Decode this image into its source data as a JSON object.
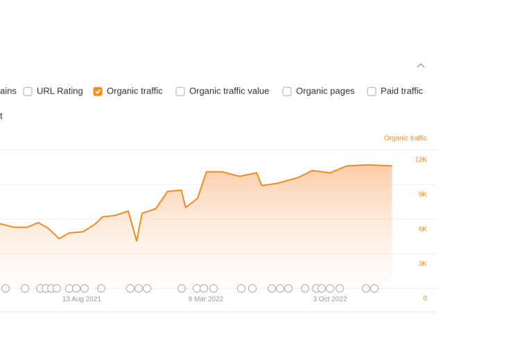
{
  "controls": {
    "metrics": [
      {
        "label": "ains",
        "checked": false
      },
      {
        "label": "URL Rating",
        "checked": false
      },
      {
        "label": "Organic traffic",
        "checked": true
      },
      {
        "label": "Organic traffic value",
        "checked": false
      },
      {
        "label": "Organic pages",
        "checked": false
      },
      {
        "label": "Paid traffic",
        "checked": false
      }
    ],
    "section_label": "t"
  },
  "chart_data": {
    "type": "line",
    "y_label": "Organic traffic",
    "color": "#f58a1f",
    "grid": true,
    "x": [
      "2021-03-29",
      "2021-04-21",
      "2021-05-14",
      "2021-06-01",
      "2021-06-18",
      "2021-07-06",
      "2021-07-23",
      "2021-08-15",
      "2021-09-05",
      "2021-09-17",
      "2021-10-07",
      "2021-10-30",
      "2021-11-13",
      "2021-11-22",
      "2021-12-15",
      "2022-01-04",
      "2022-01-27",
      "2022-02-03",
      "2022-02-23",
      "2022-03-10",
      "2022-04-05",
      "2022-05-04",
      "2022-06-02",
      "2022-06-11",
      "2022-07-07",
      "2022-08-11",
      "2022-09-03",
      "2022-10-03",
      "2022-10-31",
      "2022-12-05",
      "2023-01-15"
    ],
    "series": [
      {
        "name": "Organic traffic",
        "color": "#f58a1f",
        "values": [
          5600,
          5300,
          5300,
          5700,
          5200,
          4300,
          4800,
          4900,
          5600,
          6200,
          6300,
          6700,
          4100,
          6500,
          6900,
          8400,
          8500,
          7000,
          7800,
          10100,
          10100,
          9700,
          10000,
          8900,
          9100,
          9600,
          10200,
          10000,
          10600,
          10700,
          10600
        ]
      }
    ],
    "xlim": [
      "2021-03-29",
      "2023-03-31"
    ],
    "xticks": [
      {
        "value": "2021-08-13",
        "label": "13 Aug 2021"
      },
      {
        "value": "2022-03-09",
        "label": "9 Mar 2022"
      },
      {
        "value": "2022-10-03",
        "label": "3 Oct 2022"
      }
    ],
    "ylim": [
      0,
      12000
    ],
    "yticks": [
      0,
      {
        "value": 3000,
        "label": "3K"
      },
      {
        "value": 6000,
        "label": "6K"
      },
      {
        "value": 9000,
        "label": "9K"
      },
      {
        "value": 12000,
        "label": "12K"
      }
    ]
  }
}
